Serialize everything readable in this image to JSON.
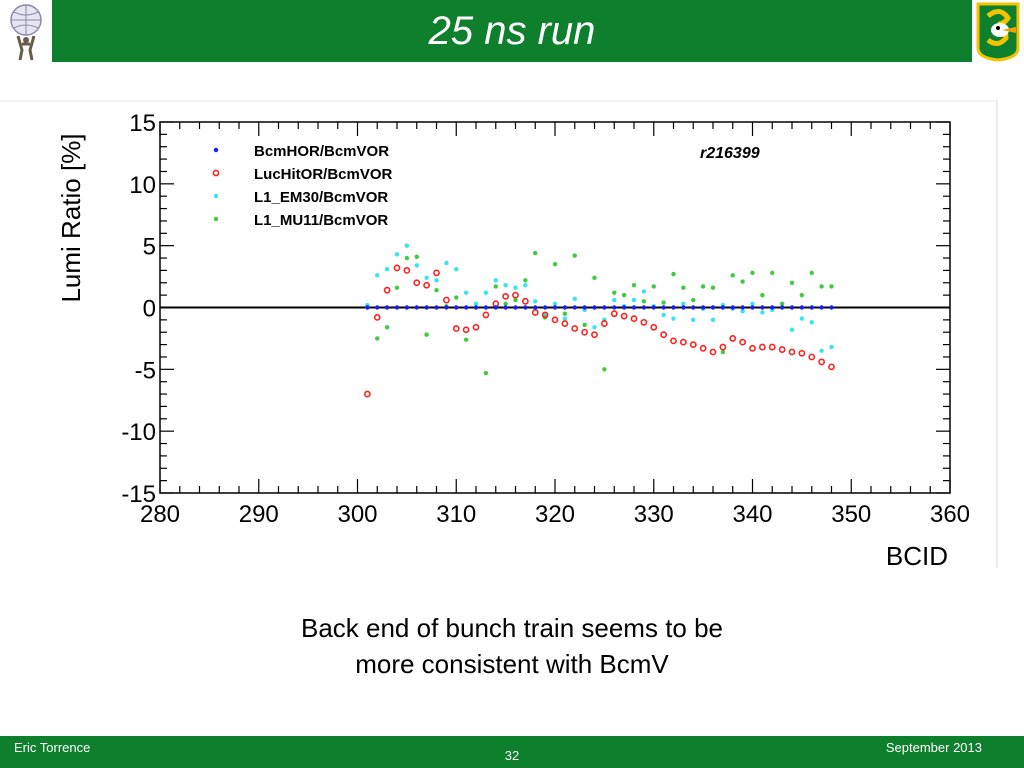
{
  "slide": {
    "title": "25 ns run",
    "caption_lines": [
      "Back end of bunch train seems to be",
      "more consistent with BcmV"
    ],
    "footer_author": "Eric Torrence",
    "footer_date": "September 2013",
    "page_number": "32",
    "left_logo_icon": "atlas-logo-icon",
    "right_logo_icon": "ducks-logo-icon",
    "theme_color": "#0e7f2c"
  },
  "chart_data": {
    "type": "scatter",
    "xlabel": "BCID",
    "ylabel": "Lumi Ratio [%]",
    "xlim": [
      280,
      360
    ],
    "ylim": [
      -15,
      15
    ],
    "x_ticks": [
      280,
      290,
      300,
      310,
      320,
      330,
      340,
      350,
      360
    ],
    "y_ticks": [
      15,
      10,
      5,
      0,
      -5,
      -10,
      -15
    ],
    "annotation": "r216399",
    "legend_position": "top-left",
    "grid": false,
    "reference_line_y": 0,
    "series": [
      {
        "name": "BcmHOR/BcmVOR",
        "marker": "dot",
        "color": "#1a1aff",
        "x": [
          301,
          302,
          303,
          304,
          305,
          306,
          307,
          308,
          309,
          310,
          311,
          312,
          313,
          314,
          315,
          316,
          317,
          318,
          319,
          320,
          321,
          322,
          323,
          324,
          325,
          326,
          327,
          328,
          329,
          330,
          331,
          332,
          333,
          334,
          335,
          336,
          337,
          338,
          339,
          340,
          341,
          342,
          343,
          344,
          345,
          346,
          347,
          348
        ],
        "y": [
          0,
          0,
          0,
          0,
          0,
          0,
          0,
          0,
          0,
          0,
          0,
          0,
          0,
          0,
          0,
          0,
          0,
          0,
          0,
          0,
          0,
          0,
          0,
          0,
          0,
          0,
          0,
          0,
          0,
          0,
          0,
          0,
          0,
          0,
          0,
          0,
          0,
          0,
          0,
          0,
          0,
          0,
          0,
          0,
          0,
          0,
          0,
          0
        ]
      },
      {
        "name": "LucHitOR/BcmVOR",
        "marker": "open-circle",
        "color": "#ff2020",
        "x": [
          301,
          302,
          303,
          304,
          305,
          306,
          307,
          308,
          309,
          310,
          311,
          312,
          313,
          314,
          315,
          316,
          317,
          318,
          319,
          320,
          321,
          322,
          323,
          324,
          325,
          326,
          327,
          328,
          329,
          330,
          331,
          332,
          333,
          334,
          335,
          336,
          337,
          338,
          339,
          340,
          341,
          342,
          343,
          344,
          345,
          346,
          347,
          348
        ],
        "y": [
          -7.0,
          -0.8,
          1.4,
          3.2,
          3.0,
          2.0,
          1.8,
          2.8,
          0.6,
          -1.7,
          -1.8,
          -1.6,
          -0.6,
          0.3,
          0.9,
          1.0,
          0.5,
          -0.4,
          -0.6,
          -1.0,
          -1.3,
          -1.7,
          -2.0,
          -2.2,
          -1.3,
          -0.5,
          -0.7,
          -0.9,
          -1.2,
          -1.6,
          -2.2,
          -2.7,
          -2.8,
          -3.0,
          -3.3,
          -3.6,
          -3.2,
          -2.5,
          -2.8,
          -3.3,
          -3.2,
          -3.2,
          -3.4,
          -3.6,
          -3.7,
          -4.0,
          -4.4,
          -4.8
        ]
      },
      {
        "name": "L1_EM30/BcmVOR",
        "marker": "dot",
        "color": "#33e6f0",
        "x": [
          301,
          302,
          303,
          304,
          305,
          306,
          307,
          308,
          309,
          310,
          311,
          312,
          313,
          314,
          315,
          316,
          317,
          318,
          319,
          320,
          321,
          322,
          323,
          324,
          325,
          326,
          327,
          328,
          329,
          330,
          331,
          332,
          333,
          334,
          335,
          336,
          337,
          338,
          339,
          340,
          341,
          342,
          343,
          344,
          345,
          346,
          347,
          348
        ],
        "y": [
          0.2,
          2.6,
          3.1,
          4.3,
          5.0,
          3.4,
          2.4,
          2.2,
          3.6,
          3.1,
          1.2,
          0.3,
          1.2,
          2.2,
          1.8,
          1.6,
          1.8,
          0.5,
          -0.6,
          0.3,
          -0.9,
          0.7,
          -0.2,
          -1.6,
          -1.0,
          0.6,
          0.1,
          0.6,
          1.3,
          0.1,
          -0.6,
          -0.9,
          0.3,
          -1.0,
          -0.1,
          -1.0,
          0.2,
          -0.1,
          -0.3,
          0.3,
          -0.4,
          -0.2,
          0.3,
          -1.8,
          -0.9,
          -1.2,
          -3.5,
          -3.2
        ]
      },
      {
        "name": "L1_MU11/BcmVOR",
        "marker": "dot",
        "color": "#3fca3f",
        "x": [
          301,
          302,
          303,
          304,
          305,
          306,
          307,
          308,
          309,
          310,
          311,
          312,
          313,
          314,
          315,
          316,
          317,
          318,
          319,
          320,
          321,
          322,
          323,
          324,
          325,
          326,
          327,
          328,
          329,
          330,
          331,
          332,
          333,
          334,
          335,
          336,
          337,
          338,
          339,
          340,
          341,
          342,
          343,
          344,
          345,
          346,
          347,
          348
        ],
        "y": [
          0.0,
          -2.5,
          -1.6,
          1.6,
          4.0,
          4.1,
          -2.2,
          1.4,
          0.1,
          0.8,
          -2.6,
          0.0,
          -5.3,
          1.7,
          0.3,
          0.6,
          2.2,
          4.4,
          -0.8,
          3.5,
          -0.5,
          4.2,
          -1.4,
          2.4,
          -5.0,
          1.2,
          1.0,
          1.8,
          0.5,
          1.7,
          0.4,
          2.7,
          1.6,
          0.6,
          1.7,
          1.6,
          -3.6,
          2.6,
          2.1,
          2.8,
          1.0,
          2.8,
          0.3,
          2.0,
          1.0,
          2.8,
          1.7,
          1.7
        ]
      }
    ]
  }
}
